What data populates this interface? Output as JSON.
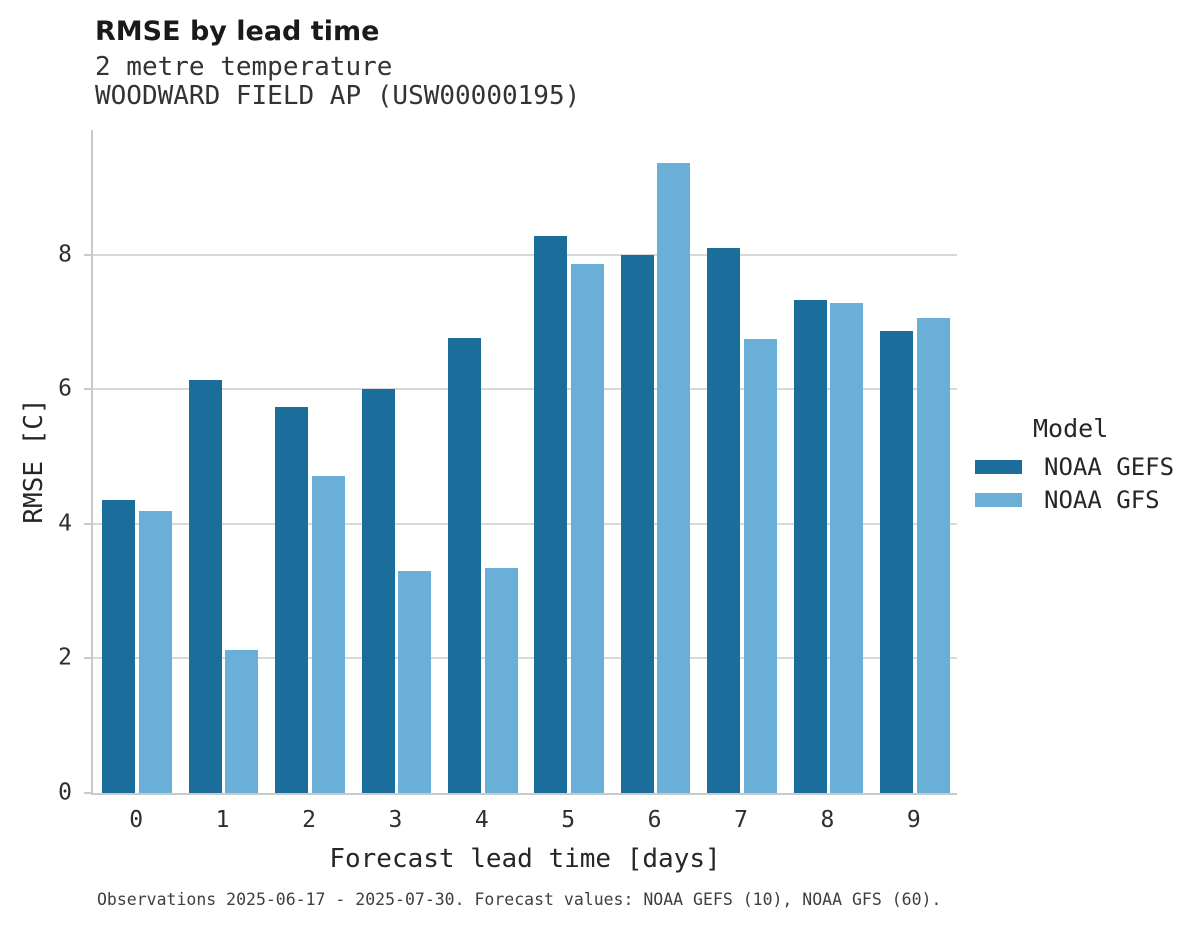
{
  "header": {
    "title": "RMSE by lead time",
    "subtitle_variable": "2 metre temperature",
    "subtitle_station": "WOODWARD FIELD AP (USW00000195)"
  },
  "chart_data": {
    "type": "bar",
    "title": "RMSE by lead time",
    "subtitle": "2 metre temperature — WOODWARD FIELD AP (USW00000195)",
    "xlabel": "Forecast lead time [days]",
    "ylabel": "RMSE [C]",
    "categories": [
      "0",
      "1",
      "2",
      "3",
      "4",
      "5",
      "6",
      "7",
      "8",
      "9"
    ],
    "series": [
      {
        "name": "NOAA GEFS",
        "color": "#1B6D9C",
        "values": [
          4.35,
          6.14,
          5.73,
          6.0,
          6.76,
          8.27,
          7.99,
          8.09,
          7.32,
          6.86
        ]
      },
      {
        "name": "NOAA GFS",
        "color": "#69AFD8",
        "values": [
          4.19,
          2.12,
          4.71,
          3.3,
          3.34,
          7.86,
          9.36,
          6.74,
          7.28,
          7.06
        ]
      }
    ],
    "ylim": [
      0,
      9.85
    ],
    "yticks": [
      0,
      2,
      4,
      6,
      8
    ],
    "grid": true,
    "legend": {
      "title": "Model",
      "position": "right"
    }
  },
  "footer": {
    "caption": "Observations 2025-06-17 - 2025-07-30. Forecast values: NOAA GEFS (10), NOAA GFS (60)."
  }
}
